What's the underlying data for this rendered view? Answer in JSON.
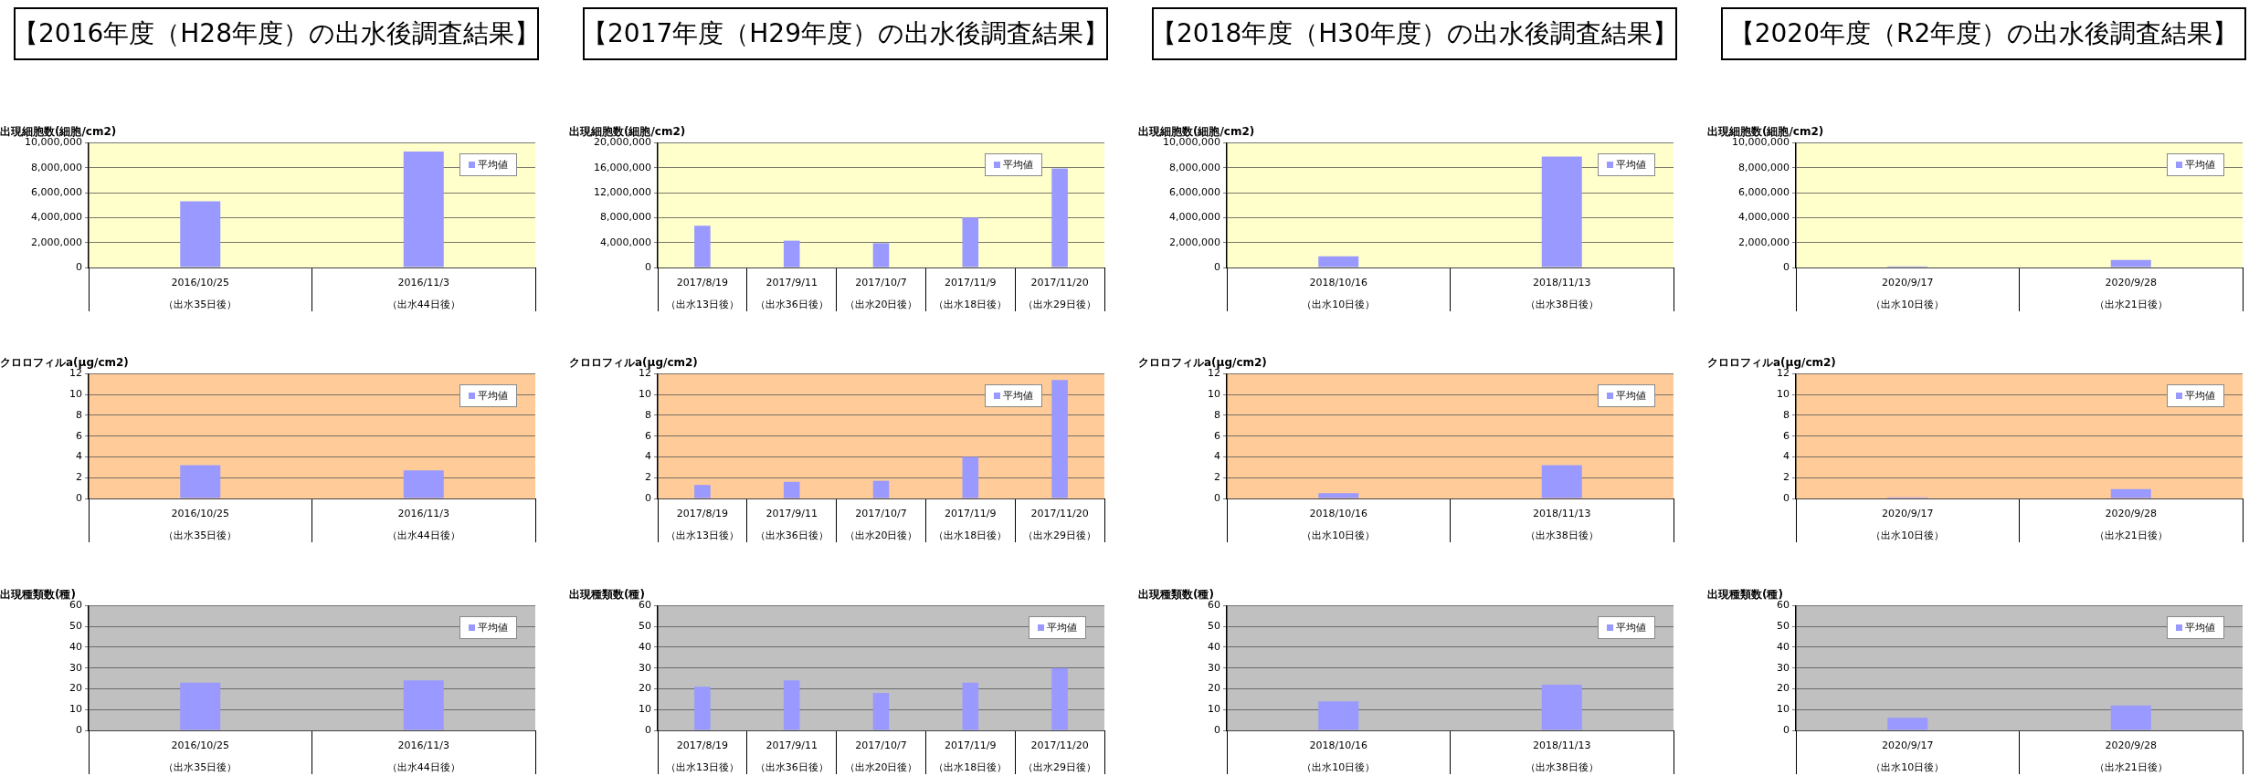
{
  "chart_data": [
    {
      "type": "bar",
      "title": "【2016年度（H28年度）の出水後調査結果】",
      "ylabel": "出現細胞数(細胞/cm2)",
      "categories": [
        "2016/10/25\n（出水35日後）",
        "2016/11/3\n（出水44日後）"
      ],
      "series": [
        {
          "name": "平均値",
          "color": "#9999ff",
          "values": [
            5300000,
            9300000
          ]
        }
      ],
      "ylim": [
        0,
        10000000
      ],
      "yticks": [
        0,
        {
          "value": 2000000,
          "label": "2,000,000"
        },
        {
          "value": 4000000,
          "label": "4,000,000"
        },
        {
          "value": 6000000,
          "label": "6,000,000"
        },
        {
          "value": 8000000,
          "label": "8,000,000"
        },
        {
          "value": 10000000,
          "label": "10,000,000"
        }
      ],
      "grid": "y",
      "legend": "top right"
    },
    {
      "type": "bar",
      "title": "【2017年度（H29年度）の出水後調査結果】",
      "ylabel": "出現細胞数(細胞/cm2)",
      "categories": [
        "2017/8/19\n（出水13日後）",
        "2017/9/11\n（出水36日後）",
        "2017/10/7\n（出水20日後）",
        "2017/11/9\n（出水18日後）",
        "2017/11/20\n（出水29日後）"
      ],
      "series": [
        {
          "name": "平均値",
          "color": "#9999ff",
          "values": [
            6700000,
            4300000,
            3900000,
            8000000,
            15900000
          ]
        }
      ],
      "ylim": [
        0,
        20000000
      ],
      "yticks": [
        0,
        {
          "value": 4000000,
          "label": "4,000,000"
        },
        {
          "value": 8000000,
          "label": "8,000,000"
        },
        {
          "value": 12000000,
          "label": "12,000,000"
        },
        {
          "value": 16000000,
          "label": "16,000,000"
        },
        {
          "value": 20000000,
          "label": "20,000,000"
        }
      ],
      "grid": "y",
      "legend": "top right"
    },
    {
      "type": "bar",
      "title": "【2018年度（H30年度）の出水後調査結果】",
      "ylabel": "出現細胞数(細胞/cm2)",
      "categories": [
        "2018/10/16\n（出水10日後）",
        "2018/11/13\n（出水38日後）"
      ],
      "series": [
        {
          "name": "平均値",
          "color": "#9999ff",
          "values": [
            900000,
            8900000
          ]
        }
      ],
      "ylim": [
        0,
        10000000
      ],
      "yticks": [
        0,
        {
          "value": 2000000,
          "label": "2,000,000"
        },
        {
          "value": 4000000,
          "label": "4,000,000"
        },
        {
          "value": 6000000,
          "label": "6,000,000"
        },
        {
          "value": 8000000,
          "label": "8,000,000"
        },
        {
          "value": 10000000,
          "label": "10,000,000"
        }
      ],
      "grid": "y",
      "legend": "top right"
    },
    {
      "type": "bar",
      "title": "【2020年度（R2年度）の出水後調査結果】",
      "ylabel": "出現細胞数(細胞/cm2)",
      "categories": [
        "2020/9/17\n（出水10日後）",
        "2020/9/28\n（出水21日後）"
      ],
      "series": [
        {
          "name": "平均値",
          "color": "#9999ff",
          "values": [
            100000,
            600000
          ]
        }
      ],
      "ylim": [
        0,
        10000000
      ],
      "yticks": [
        0,
        {
          "value": 2000000,
          "label": "2,000,000"
        },
        {
          "value": 4000000,
          "label": "4,000,000"
        },
        {
          "value": 6000000,
          "label": "6,000,000"
        },
        {
          "value": 8000000,
          "label": "8,000,000"
        },
        {
          "value": 10000000,
          "label": "10,000,000"
        }
      ],
      "grid": "y",
      "legend": "top right"
    },
    {
      "type": "bar",
      "ylabel": "クロロフィルa(μg/cm2)",
      "categories": [
        "2016/10/25\n（出水35日後）",
        "2016/11/3\n（出水44日後）"
      ],
      "series": [
        {
          "name": "平均値",
          "color": "#9999ff",
          "values": [
            3.2,
            2.7
          ]
        }
      ],
      "ylim": [
        0,
        12
      ],
      "yticks": [
        0,
        2,
        4,
        6,
        8,
        10,
        12
      ],
      "grid": "y",
      "legend": "top right"
    },
    {
      "type": "bar",
      "ylabel": "クロロフィルa(μg/cm2)",
      "categories": [
        "2017/8/19\n（出水13日後）",
        "2017/9/11\n（出水36日後）",
        "2017/10/7\n（出水20日後）",
        "2017/11/9\n（出水18日後）",
        "2017/11/20\n（出水29日後）"
      ],
      "series": [
        {
          "name": "平均値",
          "color": "#9999ff",
          "values": [
            1.3,
            1.6,
            1.7,
            4.0,
            11.4
          ]
        }
      ],
      "ylim": [
        0,
        12
      ],
      "yticks": [
        0,
        2,
        4,
        6,
        8,
        10,
        12
      ],
      "grid": "y",
      "legend": "top right"
    },
    {
      "type": "bar",
      "ylabel": "クロロフィルa(μg/cm2)",
      "categories": [
        "2018/10/16\n（出水10日後）",
        "2018/11/13\n（出水38日後）"
      ],
      "series": [
        {
          "name": "平均値",
          "color": "#9999ff",
          "values": [
            0.5,
            3.2
          ]
        }
      ],
      "ylim": [
        0,
        12
      ],
      "yticks": [
        0,
        2,
        4,
        6,
        8,
        10,
        12
      ],
      "grid": "y",
      "legend": "top right"
    },
    {
      "type": "bar",
      "ylabel": "クロロフィルa(μg/cm2)",
      "categories": [
        "2020/9/17\n（出水10日後）",
        "2020/9/28\n（出水21日後）"
      ],
      "series": [
        {
          "name": "平均値",
          "color": "#9999ff",
          "values": [
            0.1,
            0.9
          ]
        }
      ],
      "ylim": [
        0,
        12
      ],
      "yticks": [
        0,
        2,
        4,
        6,
        8,
        10,
        12
      ],
      "grid": "y",
      "legend": "top right"
    },
    {
      "type": "bar",
      "ylabel": "出現種類数(種)",
      "categories": [
        "2016/10/25\n（出水35日後）",
        "2016/11/3\n（出水44日後）"
      ],
      "series": [
        {
          "name": "平均値",
          "color": "#9999ff",
          "values": [
            23,
            24
          ]
        }
      ],
      "ylim": [
        0,
        60
      ],
      "yticks": [
        0,
        10,
        20,
        30,
        40,
        50,
        60
      ],
      "grid": "y",
      "legend": "top right"
    },
    {
      "type": "bar",
      "ylabel": "出現種類数(種)",
      "categories": [
        "2017/8/19\n（出水13日後）",
        "2017/9/11\n（出水36日後）",
        "2017/10/7\n（出水20日後）",
        "2017/11/9\n（出水18日後）",
        "2017/11/20\n（出水29日後）"
      ],
      "series": [
        {
          "name": "平均値",
          "color": "#9999ff",
          "values": [
            21,
            24,
            18,
            23,
            30
          ]
        }
      ],
      "ylim": [
        0,
        60
      ],
      "yticks": [
        0,
        10,
        20,
        30,
        40,
        50,
        60
      ],
      "grid": "y",
      "legend": "top right"
    },
    {
      "type": "bar",
      "ylabel": "出現種類数(種)",
      "categories": [
        "2018/10/16\n（出水10日後）",
        "2018/11/13\n（出水38日後）"
      ],
      "series": [
        {
          "name": "平均値",
          "color": "#9999ff",
          "values": [
            14,
            22
          ]
        }
      ],
      "ylim": [
        0,
        60
      ],
      "yticks": [
        0,
        10,
        20,
        30,
        40,
        50,
        60
      ],
      "grid": "y",
      "legend": "top right"
    },
    {
      "type": "bar",
      "ylabel": "出現種類数(種)",
      "categories": [
        "2020/9/17\n（出水10日後）",
        "2020/9/28\n（出水21日後）"
      ],
      "series": [
        {
          "name": "平均値",
          "color": "#9999ff",
          "values": [
            6,
            12
          ]
        }
      ],
      "ylim": [
        0,
        60
      ],
      "yticks": [
        0,
        10,
        20,
        30,
        40,
        50,
        60
      ],
      "grid": "y",
      "legend": "top right"
    }
  ]
}
